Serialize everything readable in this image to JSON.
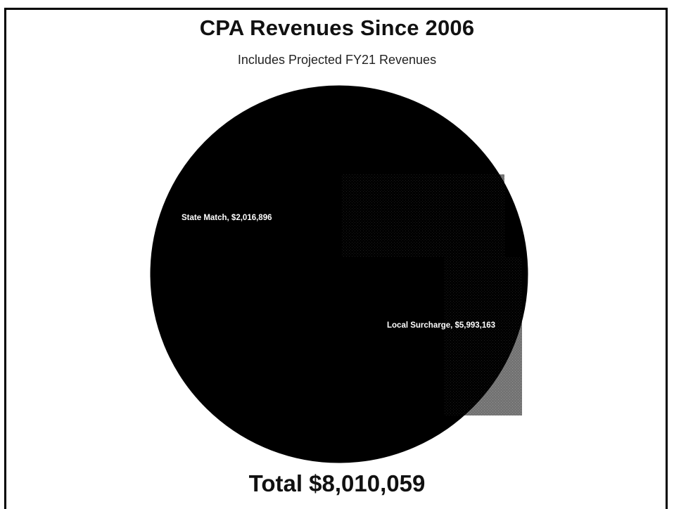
{
  "chart_data": {
    "type": "pie",
    "title": "CPA Revenues Since 2006",
    "subtitle": "Includes Projected FY21 Revenues",
    "slices": [
      {
        "label": "Local Surcharge",
        "value": 5993163,
        "value_label": "$5,993,163",
        "color": "#000000"
      },
      {
        "label": "State Match",
        "value": 2016896,
        "value_label": "$2,016,896",
        "color": "#000000"
      }
    ],
    "total_text": "Total $8,010,059",
    "data_labels": [
      "Local Surcharge, $5,993,163",
      "State Match, $2,016,896"
    ]
  }
}
